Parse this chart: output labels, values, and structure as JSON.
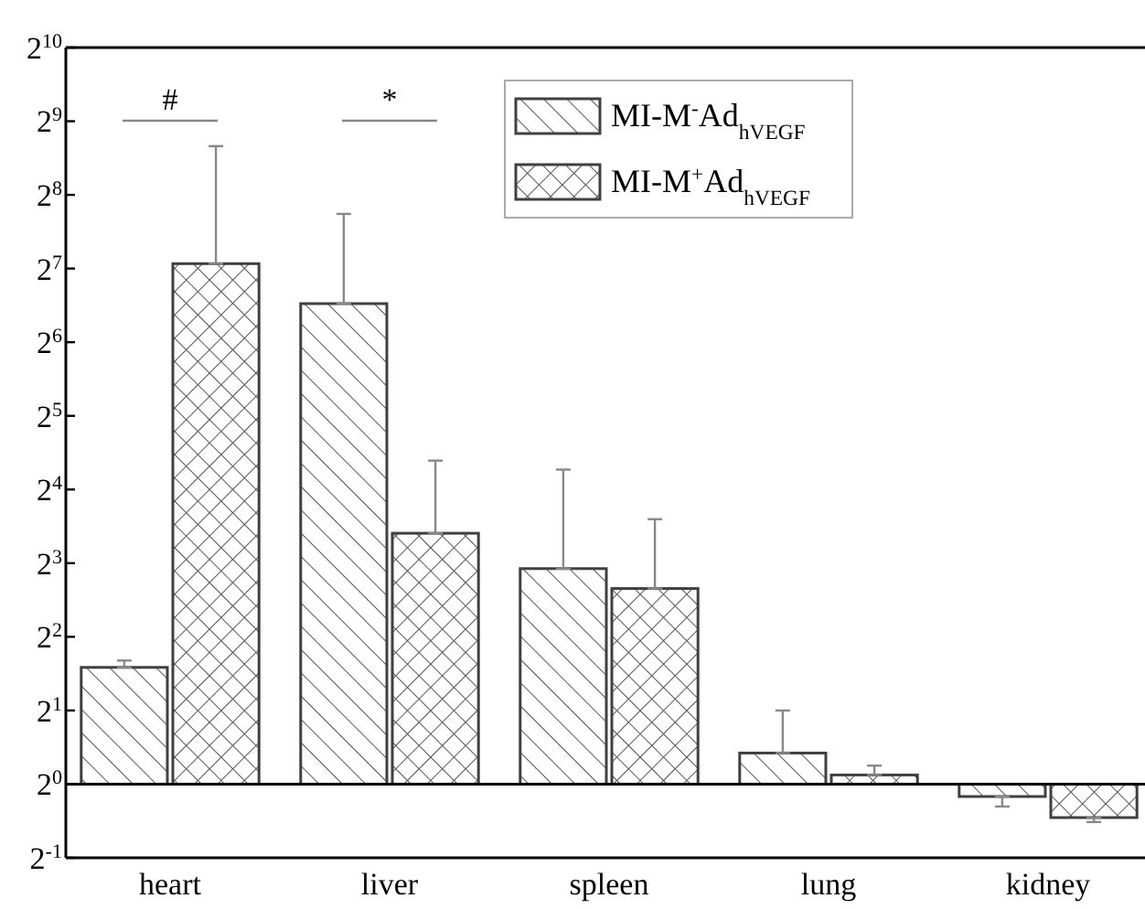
{
  "chart_data": {
    "type": "bar",
    "categories": [
      "heart",
      "liver",
      "spleen",
      "lung",
      "kidney"
    ],
    "series": [
      {
        "name": "MI-M$^{-}$Ad$_{hVEGF}$",
        "color": "#404040",
        "base": [
          1,
          1,
          1,
          1,
          1
        ],
        "values": [
          2.0,
          91,
          6.6,
          0.34,
          -0.11
        ],
        "errors": [
          [
            3.0,
            3.2
          ],
          [
            92,
            214
          ],
          [
            7.6,
            19.3
          ],
          [
            1.34,
            2.0
          ],
          [
            0.81,
            0.89
          ]
        ]
      },
      {
        "name": "MI-M$^{+}$Ad$_{hVEGF}$",
        "color": "#404040",
        "base": [
          1,
          1,
          1,
          1,
          1
        ],
        "values": [
          133,
          9.6,
          5.3,
          0.09,
          -0.27
        ],
        "errors": [
          [
            134,
            405
          ],
          [
            10.6,
            21
          ],
          [
            6.3,
            12.1
          ],
          [
            1.09,
            1.19
          ],
          [
            0.7,
            0.73
          ]
        ]
      }
    ],
    "log": true,
    "ylim": [
      0.5,
      1024
    ],
    "yticks": [
      {
        "value": 0.5,
        "label": "2$^{-1}$"
      },
      {
        "value": 1,
        "label": "2$^{0}$"
      },
      {
        "value": 2,
        "label": "2$^{1}$"
      },
      {
        "value": 4,
        "label": "2$^{2}$"
      },
      {
        "value": 8,
        "label": "2$^{3}$"
      },
      {
        "value": 16,
        "label": "2$^{4}$"
      },
      {
        "value": 32,
        "label": "2$^{5}$"
      },
      {
        "value": 64,
        "label": "2$^{6}$"
      },
      {
        "value": 128,
        "label": "2$^{7}$"
      },
      {
        "value": 256,
        "label": "2$^{8}$"
      },
      {
        "value": 512,
        "label": "2$^{9}$"
      },
      {
        "value": 1024,
        "label": "2$^{10}$"
      }
    ],
    "ref_lines": [
      {
        "axis": "y",
        "value": 1,
        "color": "#000000"
      }
    ],
    "annotations": [
      "#",
      "*"
    ],
    "legend": "top",
    "grid": false
  }
}
